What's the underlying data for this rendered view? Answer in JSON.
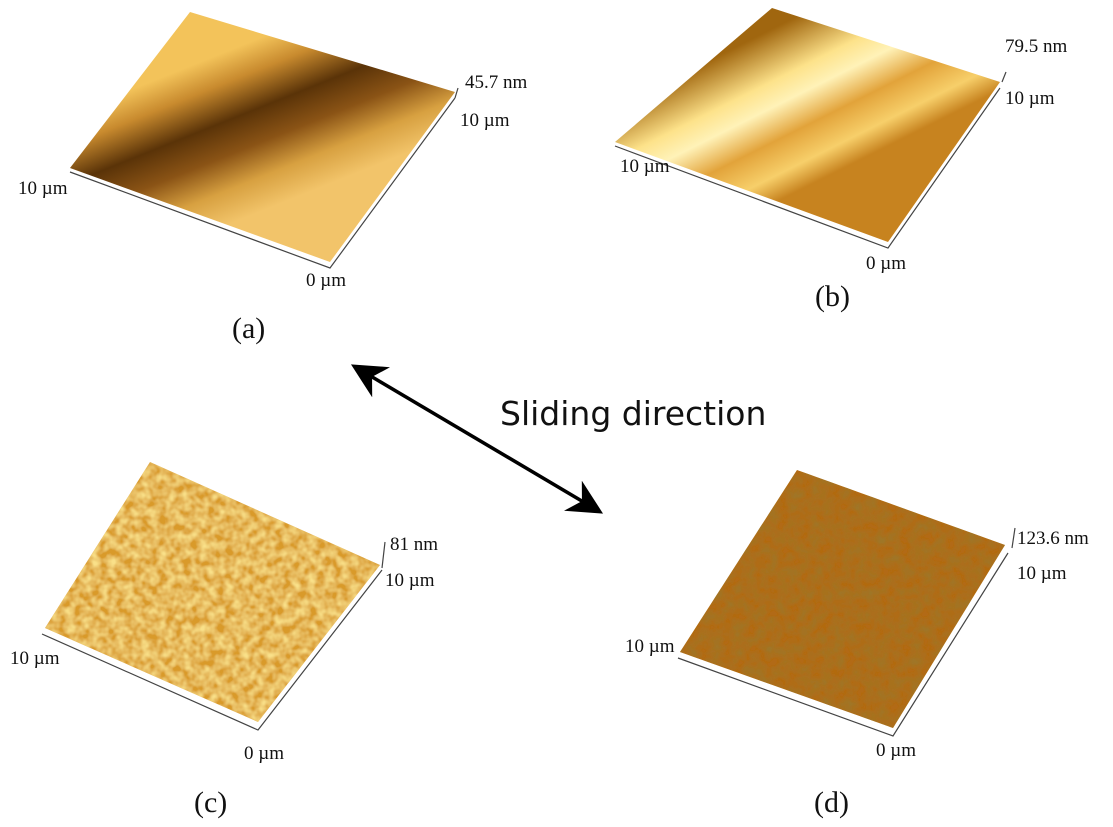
{
  "panels": [
    {
      "height_label": "45.7 nm",
      "y_label": "10 µm",
      "x_label": "10 µm",
      "origin_label": "0 µm",
      "caption": "(a)"
    },
    {
      "height_label": "79.5 nm",
      "y_label": "10 µm",
      "x_label": "10 µm",
      "origin_label": "0 µm",
      "caption": "(b)"
    },
    {
      "height_label": "81 nm",
      "y_label": "10 µm",
      "x_label": "10 µm",
      "origin_label": "0 µm",
      "caption": "(c)"
    },
    {
      "height_label": "123.6 nm",
      "y_label": "10 µm",
      "x_label": "10 µm",
      "origin_label": "0 µm",
      "caption": "(d)"
    }
  ],
  "annotation": "Sliding direction"
}
